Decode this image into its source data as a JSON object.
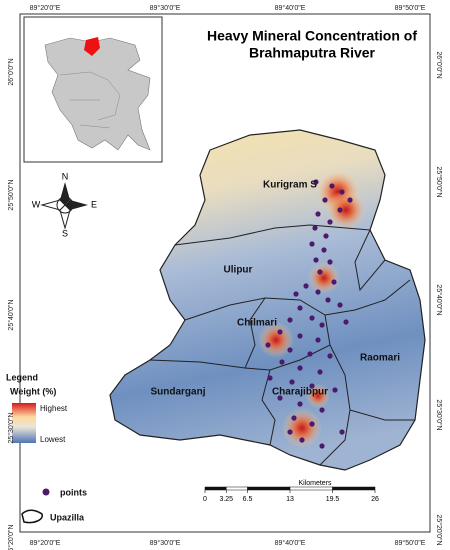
{
  "title_lines": [
    "Heavy Mineral Concentration of",
    "Brahmaputra River"
  ],
  "longitudes": [
    "89°20'0\"E",
    "89°30'0\"E",
    "89°40'0\"E",
    "89°50'0\"E"
  ],
  "latitudes": [
    "26°0'0\"N",
    "25°50'0\"N",
    "25°40'0\"N",
    "25°30'0\"N",
    "25°20'0\"N"
  ],
  "regions": [
    "Kurigram S",
    "Ulipur",
    "Chilmari",
    "Raomari",
    "Sundarganj",
    "Charajibpur"
  ],
  "compass": {
    "n": "N",
    "s": "S",
    "e": "E",
    "w": "W"
  },
  "legend": {
    "title": "Legend",
    "field": "Weight (%)",
    "high": "Highest",
    "low": "Lowest",
    "points": "points",
    "boundary": "Upazilla"
  },
  "scale_bar": {
    "unit": "Kilometers",
    "ticks": [
      0,
      3.25,
      6.5,
      13,
      19.5,
      26
    ]
  }
}
